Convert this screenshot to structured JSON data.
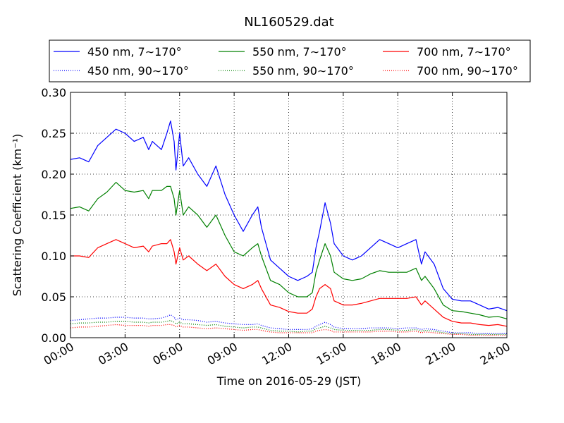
{
  "chart_data": {
    "type": "line",
    "title": "NL160529.dat",
    "xlabel": "Time on 2016-05-29 (JST)",
    "ylabel": "Scattering Coefficient (km⁻¹)",
    "xlim": [
      0,
      24
    ],
    "ylim": [
      0,
      0.3
    ],
    "x_tick_labels": [
      "00:00",
      "03:00",
      "06:00",
      "09:00",
      "12:00",
      "15:00",
      "18:00",
      "21:00",
      "24:00"
    ],
    "y_tick_labels": [
      "0.00",
      "0.05",
      "0.10",
      "0.15",
      "0.20",
      "0.25",
      "0.30"
    ],
    "grid": true,
    "legend_position": "top",
    "x_hours": [
      0,
      0.5,
      1,
      1.5,
      2,
      2.5,
      3,
      3.5,
      4,
      4.3,
      4.5,
      5,
      5.3,
      5.5,
      5.7,
      5.8,
      6,
      6.2,
      6.5,
      7,
      7.5,
      8,
      8.5,
      9,
      9.5,
      10,
      10.3,
      10.5,
      11,
      11.5,
      12,
      12.5,
      13,
      13.3,
      13.5,
      13.7,
      14,
      14.3,
      14.5,
      15,
      15.5,
      16,
      16.5,
      17,
      17.5,
      18,
      18.5,
      19,
      19.3,
      19.5,
      20,
      20.5,
      21,
      21.5,
      22,
      22.5,
      23,
      23.5,
      24
    ],
    "series": [
      {
        "name": "450 nm, 7∼170°",
        "color": "#0000ff",
        "style": "solid",
        "values": [
          0.218,
          0.22,
          0.215,
          0.235,
          0.245,
          0.255,
          0.25,
          0.24,
          0.245,
          0.23,
          0.24,
          0.23,
          0.25,
          0.265,
          0.24,
          0.205,
          0.25,
          0.21,
          0.22,
          0.2,
          0.185,
          0.21,
          0.175,
          0.15,
          0.13,
          0.15,
          0.16,
          0.135,
          0.095,
          0.085,
          0.075,
          0.07,
          0.075,
          0.08,
          0.11,
          0.13,
          0.165,
          0.14,
          0.115,
          0.1,
          0.095,
          0.1,
          0.11,
          0.12,
          0.115,
          0.11,
          0.115,
          0.12,
          0.09,
          0.105,
          0.09,
          0.06,
          0.047,
          0.045,
          0.045,
          0.04,
          0.035,
          0.037,
          0.033
        ]
      },
      {
        "name": "450 nm, 90∼170°",
        "color": "#0000ff",
        "style": "dotted",
        "values": [
          0.021,
          0.022,
          0.023,
          0.024,
          0.024,
          0.025,
          0.025,
          0.024,
          0.024,
          0.023,
          0.023,
          0.024,
          0.026,
          0.028,
          0.025,
          0.022,
          0.024,
          0.022,
          0.022,
          0.021,
          0.019,
          0.02,
          0.018,
          0.017,
          0.016,
          0.016,
          0.017,
          0.015,
          0.012,
          0.011,
          0.01,
          0.01,
          0.01,
          0.011,
          0.014,
          0.016,
          0.019,
          0.016,
          0.013,
          0.011,
          0.011,
          0.011,
          0.012,
          0.012,
          0.012,
          0.011,
          0.012,
          0.012,
          0.01,
          0.011,
          0.01,
          0.008,
          0.006,
          0.006,
          0.006,
          0.005,
          0.005,
          0.005,
          0.005
        ]
      },
      {
        "name": "550 nm, 7∼170°",
        "color": "#008000",
        "style": "solid",
        "values": [
          0.158,
          0.16,
          0.155,
          0.17,
          0.178,
          0.19,
          0.18,
          0.178,
          0.18,
          0.17,
          0.18,
          0.18,
          0.185,
          0.185,
          0.17,
          0.15,
          0.18,
          0.15,
          0.16,
          0.15,
          0.135,
          0.15,
          0.125,
          0.105,
          0.1,
          0.11,
          0.115,
          0.1,
          0.07,
          0.065,
          0.055,
          0.05,
          0.05,
          0.055,
          0.08,
          0.095,
          0.115,
          0.1,
          0.08,
          0.072,
          0.07,
          0.072,
          0.078,
          0.082,
          0.08,
          0.08,
          0.08,
          0.085,
          0.07,
          0.075,
          0.06,
          0.04,
          0.033,
          0.032,
          0.03,
          0.028,
          0.025,
          0.026,
          0.023
        ]
      },
      {
        "name": "550 nm, 90∼170°",
        "color": "#008000",
        "style": "dotted",
        "values": [
          0.017,
          0.018,
          0.018,
          0.019,
          0.019,
          0.02,
          0.02,
          0.019,
          0.019,
          0.018,
          0.019,
          0.019,
          0.02,
          0.021,
          0.019,
          0.017,
          0.019,
          0.017,
          0.017,
          0.016,
          0.015,
          0.016,
          0.014,
          0.013,
          0.012,
          0.013,
          0.013,
          0.012,
          0.009,
          0.008,
          0.008,
          0.007,
          0.008,
          0.008,
          0.011,
          0.012,
          0.014,
          0.012,
          0.01,
          0.009,
          0.009,
          0.009,
          0.009,
          0.01,
          0.01,
          0.009,
          0.009,
          0.01,
          0.008,
          0.009,
          0.008,
          0.006,
          0.005,
          0.005,
          0.004,
          0.004,
          0.004,
          0.004,
          0.004
        ]
      },
      {
        "name": "700 nm, 7∼170°",
        "color": "#ff0000",
        "style": "solid",
        "values": [
          0.1,
          0.1,
          0.098,
          0.11,
          0.115,
          0.12,
          0.115,
          0.11,
          0.112,
          0.105,
          0.112,
          0.115,
          0.115,
          0.12,
          0.105,
          0.09,
          0.11,
          0.095,
          0.1,
          0.09,
          0.082,
          0.09,
          0.075,
          0.065,
          0.06,
          0.065,
          0.07,
          0.06,
          0.04,
          0.037,
          0.032,
          0.03,
          0.03,
          0.035,
          0.05,
          0.06,
          0.065,
          0.06,
          0.045,
          0.04,
          0.04,
          0.042,
          0.045,
          0.048,
          0.048,
          0.048,
          0.048,
          0.05,
          0.04,
          0.045,
          0.035,
          0.025,
          0.02,
          0.018,
          0.018,
          0.016,
          0.015,
          0.016,
          0.014
        ]
      },
      {
        "name": "700 nm, 90∼170°",
        "color": "#ff0000",
        "style": "dotted",
        "values": [
          0.012,
          0.013,
          0.013,
          0.014,
          0.015,
          0.016,
          0.015,
          0.015,
          0.015,
          0.014,
          0.015,
          0.015,
          0.016,
          0.016,
          0.015,
          0.013,
          0.015,
          0.013,
          0.013,
          0.012,
          0.011,
          0.012,
          0.011,
          0.01,
          0.009,
          0.01,
          0.01,
          0.009,
          0.007,
          0.006,
          0.006,
          0.006,
          0.006,
          0.006,
          0.008,
          0.009,
          0.01,
          0.009,
          0.007,
          0.007,
          0.007,
          0.007,
          0.007,
          0.008,
          0.008,
          0.007,
          0.007,
          0.008,
          0.006,
          0.007,
          0.006,
          0.005,
          0.004,
          0.004,
          0.003,
          0.003,
          0.003,
          0.003,
          0.003
        ]
      }
    ]
  }
}
